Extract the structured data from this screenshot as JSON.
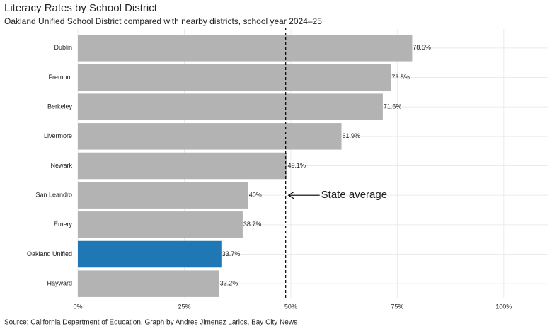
{
  "chart_data": {
    "type": "barh",
    "title": "Literacy Rates by School District",
    "subtitle": "Oakland Unified School District compared with nearby districts, school year 2024–25",
    "source": "Source: California Department of Education, Graph by Andres Jimenez Larios, Bay City News",
    "categories": [
      "Dublin",
      "Fremont",
      "Berkeley",
      "Livermore",
      "Newark",
      "San Leandro",
      "Emery",
      "Oakland Unified",
      "Hayward"
    ],
    "values": [
      78.5,
      73.5,
      71.6,
      61.9,
      49.1,
      40,
      38.7,
      33.7,
      33.2
    ],
    "value_labels": [
      "78.5%",
      "73.5%",
      "71.6%",
      "61.9%",
      "49.1%",
      "40%",
      "38.7%",
      "33.7%",
      "33.2%"
    ],
    "colors": [
      "#b3b3b3",
      "#b3b3b3",
      "#b3b3b3",
      "#b3b3b3",
      "#b3b3b3",
      "#b3b3b3",
      "#b3b3b3",
      "#1f78b4",
      "#b3b3b3"
    ],
    "xlim": [
      0,
      110.5
    ],
    "xticks": [
      {
        "value": 0,
        "label": "0%"
      },
      {
        "value": 25,
        "label": "25%"
      },
      {
        "value": 50,
        "label": "50%"
      },
      {
        "value": 75,
        "label": "75%"
      },
      {
        "value": 100,
        "label": "100%"
      }
    ],
    "grid": true,
    "reference_line": {
      "value": 48.8,
      "label": "State average"
    }
  }
}
